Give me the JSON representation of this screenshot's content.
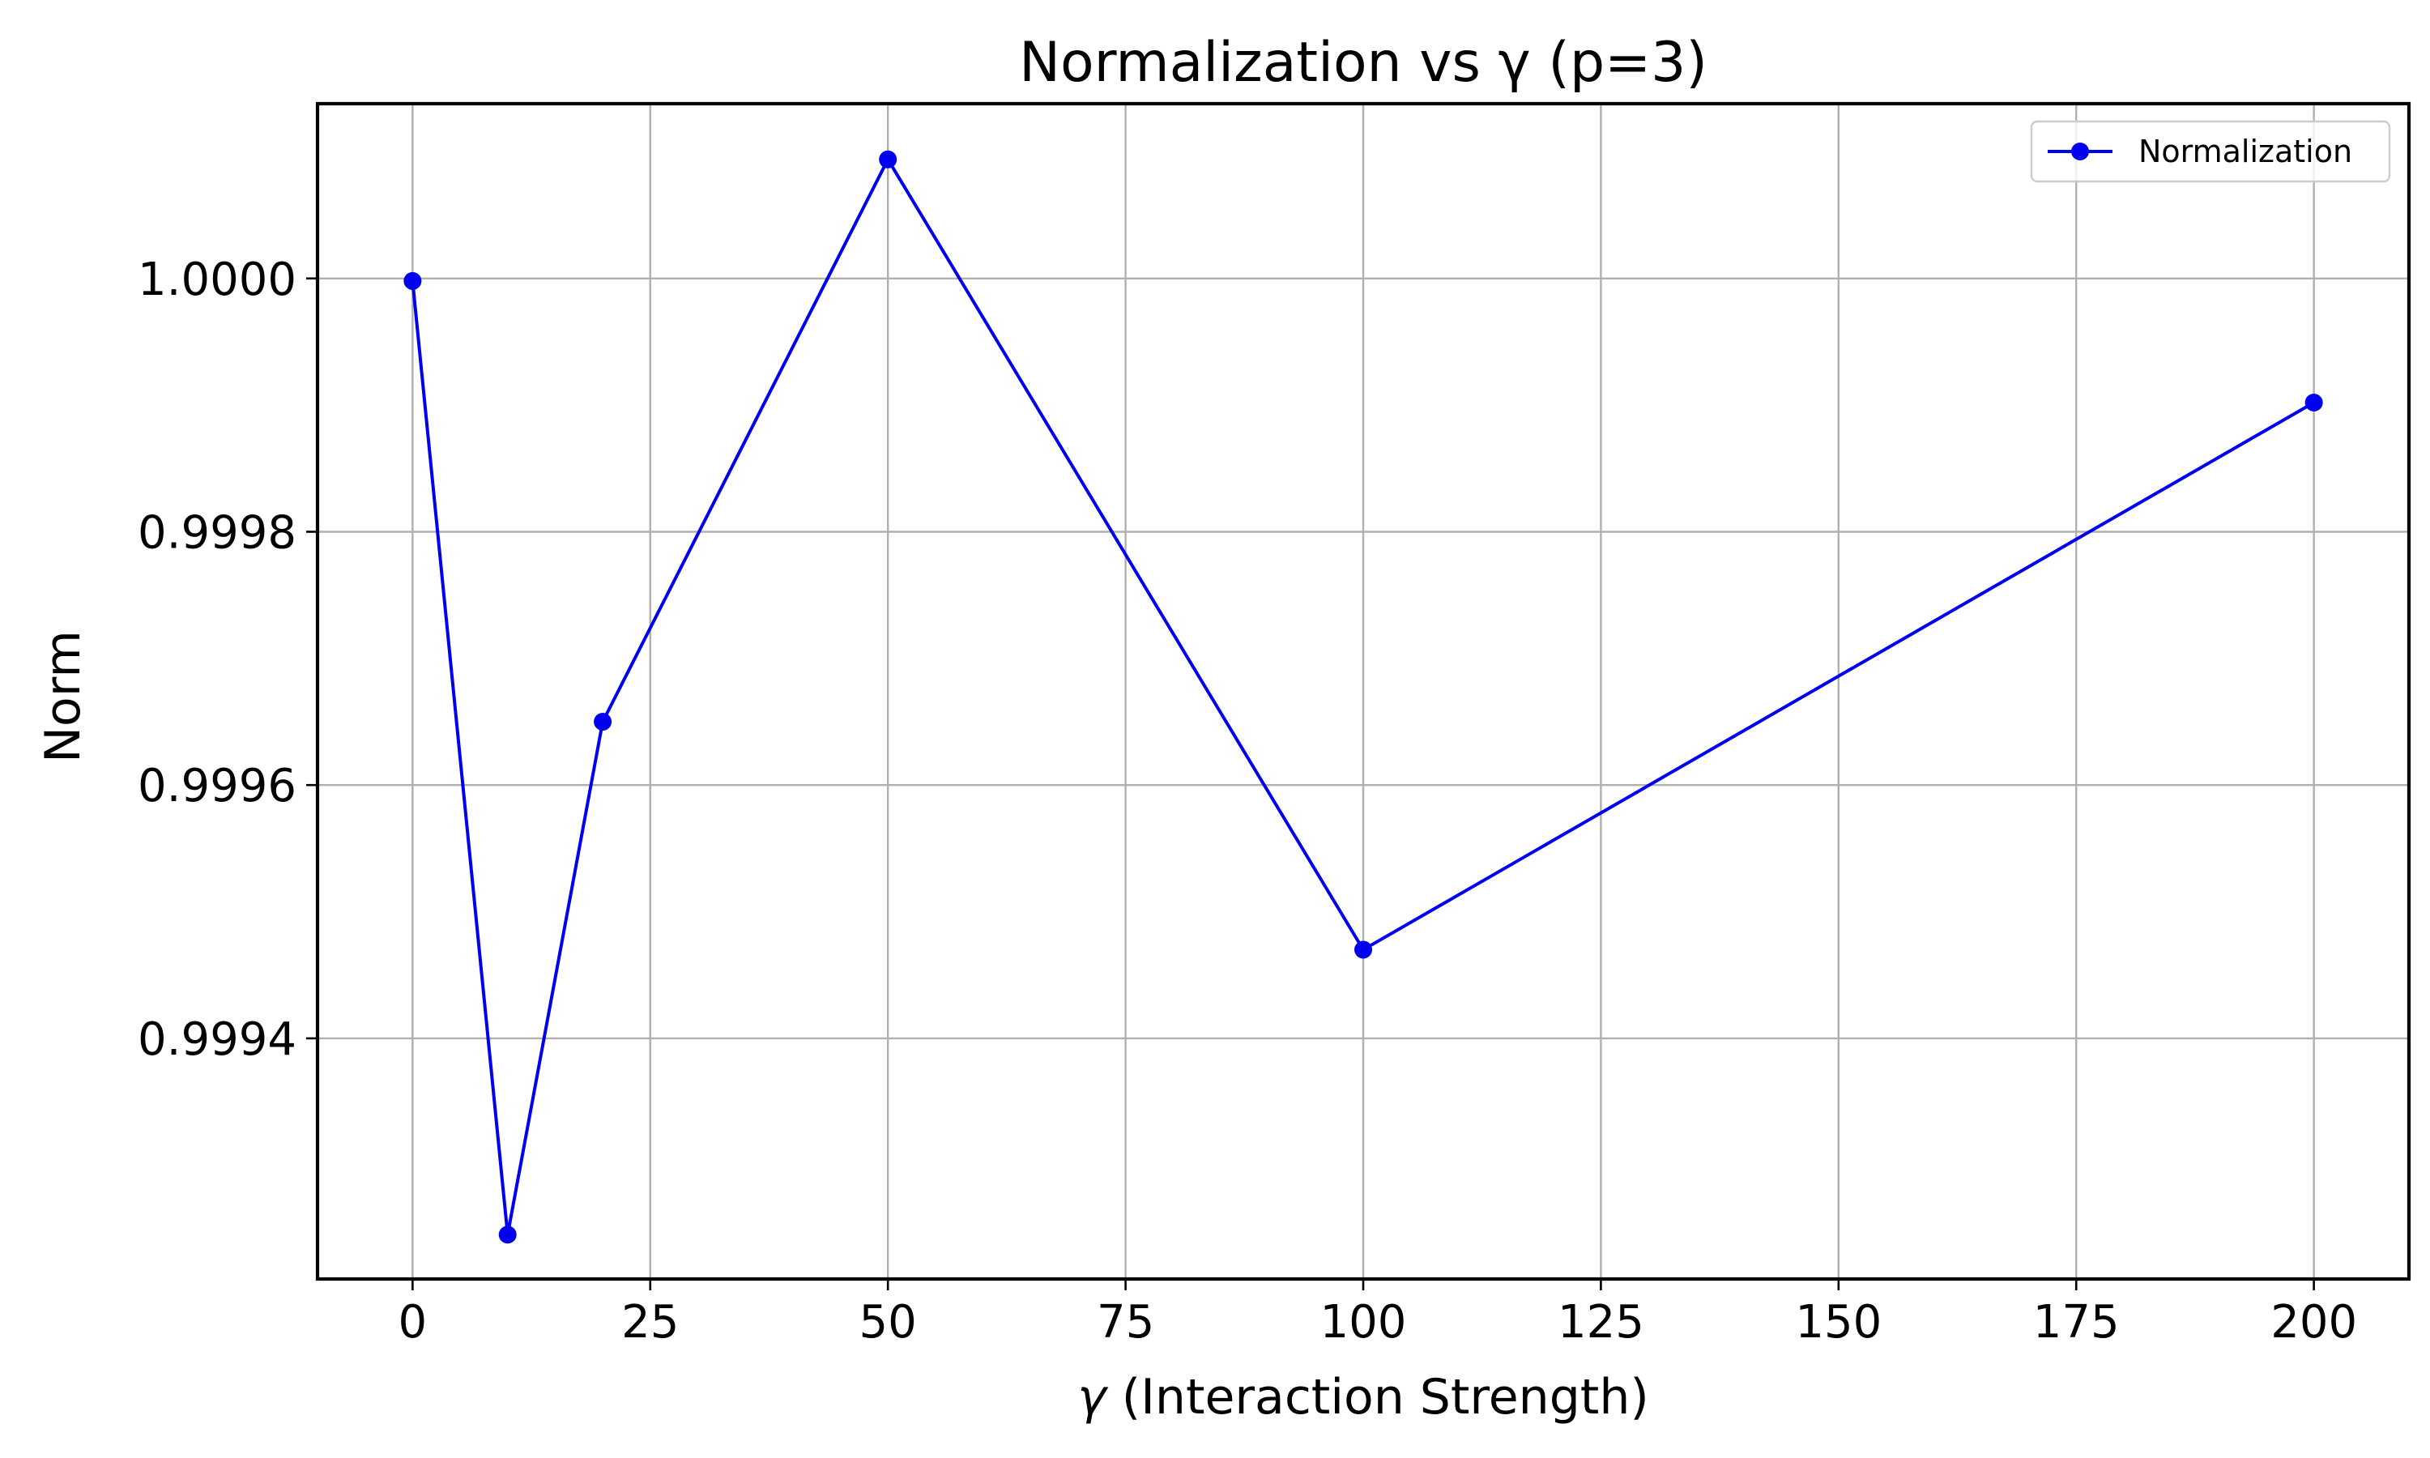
{
  "chart_data": {
    "type": "line",
    "title": "Normalization vs γ (p=3)",
    "xlabel_symbol": "γ",
    "xlabel_rest": " (Interaction Strength)",
    "ylabel": "Norm",
    "xlim": [
      -10,
      210
    ],
    "ylim": [
      0.99921,
      1.000138
    ],
    "x_ticks": [
      0,
      25,
      50,
      75,
      100,
      125,
      150,
      175,
      200
    ],
    "x_tick_labels": [
      "0",
      "25",
      "50",
      "75",
      "100",
      "125",
      "150",
      "175",
      "200"
    ],
    "y_ticks": [
      0.9994,
      0.9996,
      0.9998,
      1.0
    ],
    "y_tick_labels": [
      "0.9994",
      "0.9996",
      "0.9998",
      "1.0000"
    ],
    "grid": true,
    "legend_position": "top-right",
    "series": [
      {
        "name": "Normalization",
        "color": "#0000ee",
        "marker": "circle",
        "x": [
          0,
          10,
          20,
          50,
          100,
          200
        ],
        "y": [
          0.999998,
          0.999245,
          0.99965,
          1.000094,
          0.99947,
          0.999902
        ]
      }
    ]
  }
}
